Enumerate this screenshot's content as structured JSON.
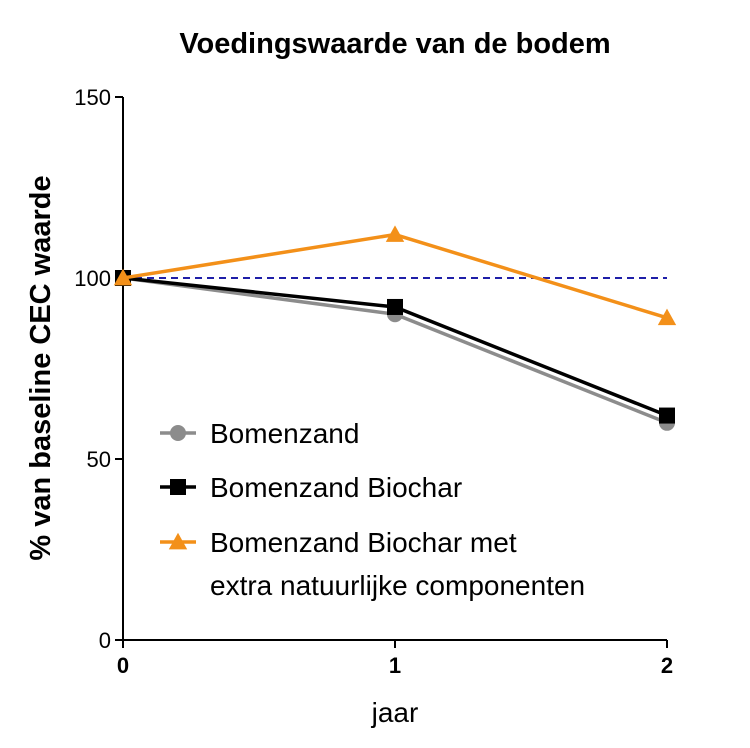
{
  "chart_data": {
    "type": "line",
    "title": "Voedingswaarde van de bodem",
    "xlabel": "jaar",
    "ylabel": "% van baseline CEC waarde",
    "x": [
      0,
      1,
      2
    ],
    "x_tick_labels": [
      "0",
      "1",
      "2"
    ],
    "ylim": [
      0,
      150
    ],
    "y_ticks": [
      0,
      50,
      100,
      150
    ],
    "reference_line": {
      "y": 100,
      "style": "dashed",
      "color": "#1f1fa8"
    },
    "grid": false,
    "legend_position": "bottom-left",
    "series": [
      {
        "name": "Bomenzand",
        "values": [
          100,
          90,
          60
        ],
        "color": "#8c8c8c",
        "marker": "circle"
      },
      {
        "name": "Bomenzand Biochar",
        "values": [
          100,
          92,
          62
        ],
        "color": "#000000",
        "marker": "square"
      },
      {
        "name": "Bomenzand Biochar met extra natuurlijke componenten",
        "legend_lines": [
          "Bomenzand Biochar met",
          "extra natuurlijke componenten"
        ],
        "values": [
          100,
          112,
          89
        ],
        "color": "#f39019",
        "marker": "triangle"
      }
    ]
  }
}
